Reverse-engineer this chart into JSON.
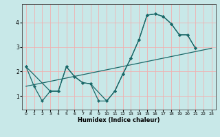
{
  "bg_color": "#c8e8e8",
  "grid_color": "#f0b0b0",
  "line_color": "#1a6868",
  "xlabel": "Humidex (Indice chaleur)",
  "xlim": [
    -0.5,
    23.5
  ],
  "ylim": [
    0.45,
    4.75
  ],
  "yticks": [
    1,
    2,
    3,
    4
  ],
  "xticks": [
    0,
    1,
    2,
    3,
    4,
    5,
    6,
    7,
    8,
    9,
    10,
    11,
    12,
    13,
    14,
    15,
    16,
    17,
    18,
    19,
    20,
    21,
    22,
    23
  ],
  "series": [
    {
      "x": [
        0,
        1,
        2,
        3,
        4,
        5,
        6,
        7,
        8,
        9,
        10,
        11,
        12,
        13,
        14,
        15,
        16,
        17,
        18,
        19,
        20,
        21
      ],
      "y": [
        2.2,
        1.4,
        0.8,
        1.2,
        1.2,
        2.2,
        1.8,
        1.55,
        1.5,
        0.8,
        0.8,
        1.2,
        1.9,
        2.55,
        3.3,
        4.3,
        4.35,
        4.25,
        3.95,
        3.5,
        3.5,
        2.95
      ],
      "marker": true
    },
    {
      "x": [
        0,
        3,
        4,
        5,
        6,
        7,
        8,
        10,
        11,
        12,
        13,
        14,
        15,
        16,
        17,
        18,
        19,
        20,
        21
      ],
      "y": [
        2.2,
        1.2,
        1.2,
        2.2,
        1.8,
        1.55,
        1.5,
        0.8,
        1.2,
        1.9,
        2.55,
        3.3,
        4.3,
        4.35,
        4.25,
        3.95,
        3.5,
        3.5,
        2.95
      ],
      "marker": true
    },
    {
      "x": [
        0,
        23
      ],
      "y": [
        1.4,
        2.95
      ],
      "marker": false
    }
  ]
}
